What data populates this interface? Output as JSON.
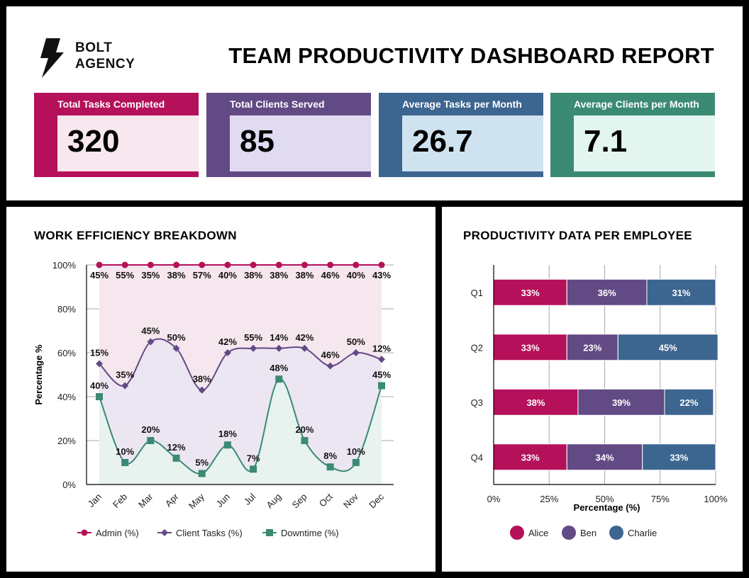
{
  "header": {
    "logo_line1": "BOLT",
    "logo_line2": "AGENCY",
    "title": "TEAM PRODUCTIVITY DASHBOARD REPORT"
  },
  "kpis": [
    {
      "label": "Total Tasks Completed",
      "value": "320",
      "color": "#b5105a",
      "light": "#f8e7ee"
    },
    {
      "label": "Total Clients Served",
      "value": "85",
      "color": "#624a85",
      "light": "#e1dbf1"
    },
    {
      "label": "Average Tasks per Month",
      "value": "26.7",
      "color": "#3c6590",
      "light": "#cfe2ef"
    },
    {
      "label": "Average Clients per Month",
      "value": "7.1",
      "color": "#3b8a74",
      "light": "#e3f5ef"
    }
  ],
  "left": {
    "title": "WORK EFFICIENCY BREAKDOWN"
  },
  "right": {
    "title": "PRODUCTIVITY DATA PER EMPLOYEE"
  },
  "chart_data": [
    {
      "type": "line",
      "title": "WORK EFFICIENCY BREAKDOWN",
      "xlabel": "",
      "ylabel": "Percentage %",
      "ylim": [
        0,
        100
      ],
      "yticks": [
        "0%",
        "20%",
        "40%",
        "60%",
        "80%",
        "100%"
      ],
      "categories": [
        "Jan",
        "Feb",
        "Mar",
        "Apr",
        "May",
        "Jun",
        "Jul",
        "Aug",
        "Sep",
        "Oct",
        "Nov",
        "Dec"
      ],
      "legend_position": "bottom",
      "series": [
        {
          "name": "Admin (%)",
          "color": "#b5105a",
          "fill": "#f6e6ee",
          "marker": "circle",
          "values": [
            100,
            100,
            100,
            100,
            100,
            100,
            100,
            100,
            100,
            100,
            100,
            100
          ],
          "labels": [
            "45%",
            "55%",
            "35%",
            "38%",
            "57%",
            "40%",
            "38%",
            "38%",
            "38%",
            "46%",
            "40%",
            "43%"
          ]
        },
        {
          "name": "Client Tasks (%)",
          "color": "#624a85",
          "fill": "#ebe6f1",
          "marker": "diamond",
          "values": [
            55,
            45,
            65,
            62,
            43,
            60,
            62,
            62,
            62,
            54,
            60,
            57
          ],
          "labels": [
            "15%",
            "35%",
            "45%",
            "50%",
            "38%",
            "42%",
            "55%",
            "14%",
            "42%",
            "46%",
            "50%",
            "12%"
          ]
        },
        {
          "name": "Downtime (%)",
          "color": "#3b8a74",
          "fill": "#e8f2ee",
          "marker": "square",
          "values": [
            40,
            10,
            20,
            12,
            5,
            18,
            7,
            48,
            20,
            8,
            10,
            45
          ],
          "labels": [
            "40%",
            "10%",
            "20%",
            "12%",
            "5%",
            "18%",
            "7%",
            "48%",
            "20%",
            "8%",
            "10%",
            "45%"
          ]
        }
      ]
    },
    {
      "type": "bar",
      "orientation": "horizontal",
      "stacked": true,
      "title": "PRODUCTIVITY DATA PER EMPLOYEE",
      "xlabel": "Percentage (%)",
      "ylabel": "",
      "xlim": [
        0,
        100
      ],
      "xticks": [
        "0%",
        "25%",
        "50%",
        "75%",
        "100%"
      ],
      "categories": [
        "Q1",
        "Q2",
        "Q3",
        "Q4"
      ],
      "legend_position": "bottom",
      "series": [
        {
          "name": "Alice",
          "color": "#b5105a",
          "values": [
            33,
            33,
            38,
            33
          ],
          "labels": [
            "33%",
            "33%",
            "38%",
            "33%"
          ]
        },
        {
          "name": "Ben",
          "color": "#624a85",
          "values": [
            36,
            23,
            39,
            34
          ],
          "labels": [
            "36%",
            "23%",
            "39%",
            "34%"
          ]
        },
        {
          "name": "Charlie",
          "color": "#3c6590",
          "values": [
            31,
            45,
            22,
            33
          ],
          "labels": [
            "31%",
            "45%",
            "22%",
            "33%"
          ]
        }
      ]
    }
  ]
}
